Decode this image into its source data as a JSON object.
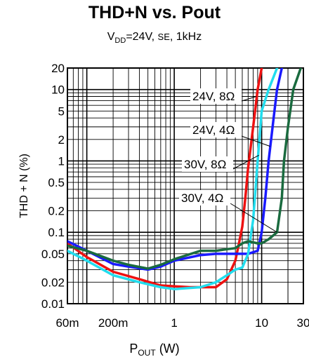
{
  "title": "THD+N vs. Pout",
  "subtitle": {
    "vdd_label": "V",
    "vdd_sub": "DD",
    "vdd_value": "=24V, ",
    "mode": "SE",
    "freq": ", 1kHz"
  },
  "xlabel": {
    "main": "P",
    "sub": "OUT",
    "unit": " (W)"
  },
  "chart_data": {
    "type": "line",
    "title": "THD+N vs. Pout",
    "xlabel": "POUT (W)",
    "ylabel": "THD + N (%)",
    "xscale": "log",
    "yscale": "log",
    "xlim": [
      0.06,
      30
    ],
    "ylim": [
      0.01,
      20
    ],
    "x_tick_labels": [
      {
        "value": 0.06,
        "label": "60m"
      },
      {
        "value": 0.2,
        "label": "200m"
      },
      {
        "value": 1,
        "label": "1"
      },
      {
        "value": 10,
        "label": "10"
      },
      {
        "value": 30,
        "label": "30"
      }
    ],
    "y_tick_labels": [
      {
        "value": 20,
        "label": "20"
      },
      {
        "value": 10,
        "label": "10"
      },
      {
        "value": 5,
        "label": "5"
      },
      {
        "value": 2,
        "label": "2"
      },
      {
        "value": 1,
        "label": "1"
      },
      {
        "value": 0.5,
        "label": "0.5"
      },
      {
        "value": 0.2,
        "label": "0.2"
      },
      {
        "value": 0.1,
        "label": "0.1"
      },
      {
        "value": 0.05,
        "label": "0.05"
      },
      {
        "value": 0.02,
        "label": "0.02"
      },
      {
        "value": 0.01,
        "label": "0.01"
      }
    ],
    "grid": true,
    "series": [
      {
        "name": "24V, 8Ω",
        "color": "#ee1111",
        "points": [
          [
            0.06,
            0.07
          ],
          [
            0.1,
            0.045
          ],
          [
            0.2,
            0.028
          ],
          [
            0.4,
            0.022
          ],
          [
            0.7,
            0.018
          ],
          [
            1.5,
            0.017
          ],
          [
            3,
            0.017
          ],
          [
            4,
            0.022
          ],
          [
            5,
            0.04
          ],
          [
            5.5,
            0.07
          ],
          [
            6,
            0.12
          ],
          [
            6.5,
            0.3
          ],
          [
            7,
            0.8
          ],
          [
            8,
            3
          ],
          [
            9,
            10
          ],
          [
            10,
            20
          ]
        ]
      },
      {
        "name": "24V, 4Ω",
        "color": "#1a1aff",
        "points": [
          [
            0.06,
            0.075
          ],
          [
            0.1,
            0.055
          ],
          [
            0.2,
            0.036
          ],
          [
            0.3,
            0.033
          ],
          [
            0.5,
            0.03
          ],
          [
            0.7,
            0.033
          ],
          [
            1,
            0.04
          ],
          [
            2,
            0.048
          ],
          [
            3,
            0.05
          ],
          [
            5,
            0.05
          ],
          [
            7,
            0.05
          ],
          [
            9,
            0.055
          ],
          [
            10,
            0.1
          ],
          [
            11,
            0.3
          ],
          [
            12,
            1
          ],
          [
            14,
            5
          ],
          [
            15,
            10
          ],
          [
            17,
            20
          ]
        ]
      },
      {
        "name": "30V, 8Ω",
        "color": "#22ddee",
        "points": [
          [
            0.06,
            0.055
          ],
          [
            0.1,
            0.04
          ],
          [
            0.2,
            0.025
          ],
          [
            0.4,
            0.02
          ],
          [
            0.7,
            0.017
          ],
          [
            1,
            0.016
          ],
          [
            2,
            0.017
          ],
          [
            3,
            0.02
          ],
          [
            4,
            0.025
          ],
          [
            5,
            0.03
          ],
          [
            6,
            0.032
          ],
          [
            7,
            0.05
          ],
          [
            8,
            0.15
          ],
          [
            9,
            1
          ],
          [
            10,
            5
          ],
          [
            12,
            10
          ],
          [
            15,
            20
          ]
        ]
      },
      {
        "name": "30V, 4Ω",
        "color": "#1a6b3f",
        "points": [
          [
            0.06,
            0.065
          ],
          [
            0.1,
            0.055
          ],
          [
            0.2,
            0.04
          ],
          [
            0.3,
            0.035
          ],
          [
            0.5,
            0.031
          ],
          [
            0.7,
            0.035
          ],
          [
            1,
            0.042
          ],
          [
            2,
            0.055
          ],
          [
            3,
            0.055
          ],
          [
            4,
            0.058
          ],
          [
            5,
            0.06
          ],
          [
            6,
            0.07
          ],
          [
            7,
            0.075
          ],
          [
            9,
            0.07
          ],
          [
            10,
            0.07
          ],
          [
            12,
            0.08
          ],
          [
            15,
            0.1
          ],
          [
            17,
            0.3
          ],
          [
            18,
            1
          ],
          [
            20,
            3
          ],
          [
            23,
            10
          ],
          [
            28,
            20
          ]
        ]
      }
    ],
    "annotations": [
      "24V, 8Ω",
      "24V, 4Ω",
      "30V, 8Ω",
      "30V, 4Ω"
    ]
  }
}
